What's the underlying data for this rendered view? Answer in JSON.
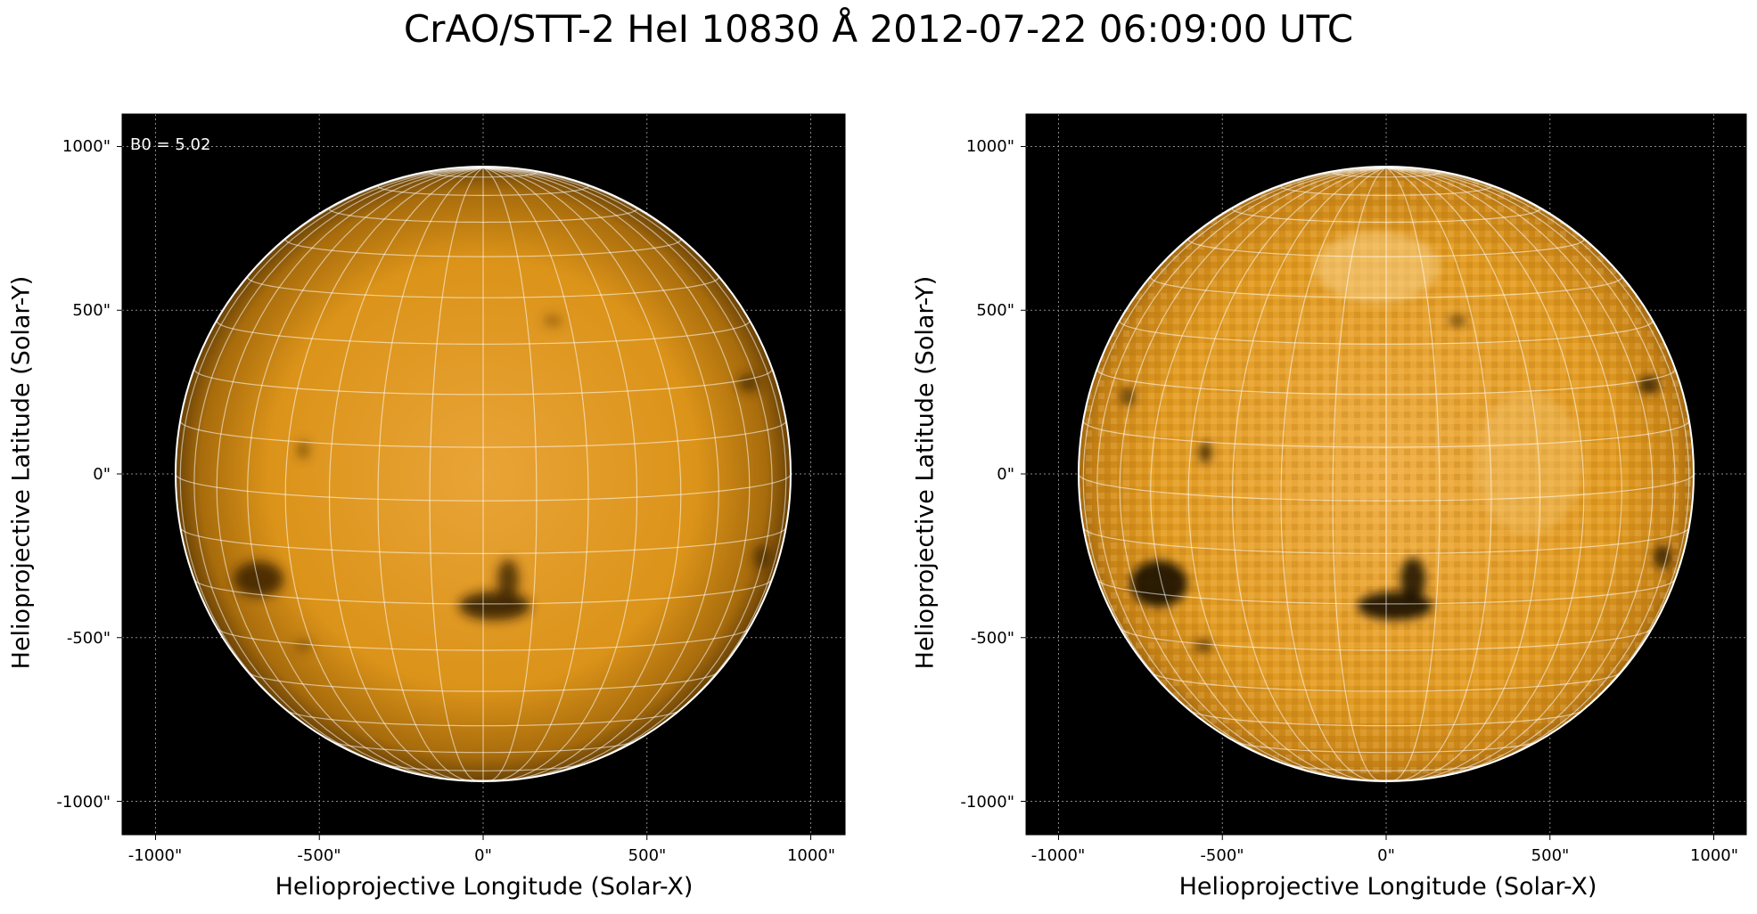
{
  "figure": {
    "title": "CrAO/STT-2 HeI 10830 Å 2012-07-22 06:09:00 UTC"
  },
  "colors": {
    "disk_base": "#e39a1a",
    "disk_limb": "#7a4e08",
    "background": "#000000",
    "grid_line": "#ffffff"
  },
  "panels": [
    {
      "annotation": "B0 = 5.02",
      "xlabel": "Helioprojective Longitude (Solar-X)",
      "ylabel": "Helioprojective Latitude (Solar-Y)",
      "x_ticks": [
        "-1000\"",
        "-500\"",
        "0\"",
        "500\"",
        "1000\""
      ],
      "y_ticks": [
        "1000\"",
        "500\"",
        "0\"",
        "-500\"",
        "-1000\""
      ]
    },
    {
      "annotation": "",
      "xlabel": "Helioprojective Longitude (Solar-X)",
      "ylabel": "Helioprojective Latitude (Solar-Y)",
      "x_ticks": [
        "-1000\"",
        "-500\"",
        "0\"",
        "500\"",
        "1000\""
      ],
      "y_ticks": [
        "1000\"",
        "500\"",
        "0\"",
        "-500\"",
        "-1000\""
      ]
    }
  ]
}
